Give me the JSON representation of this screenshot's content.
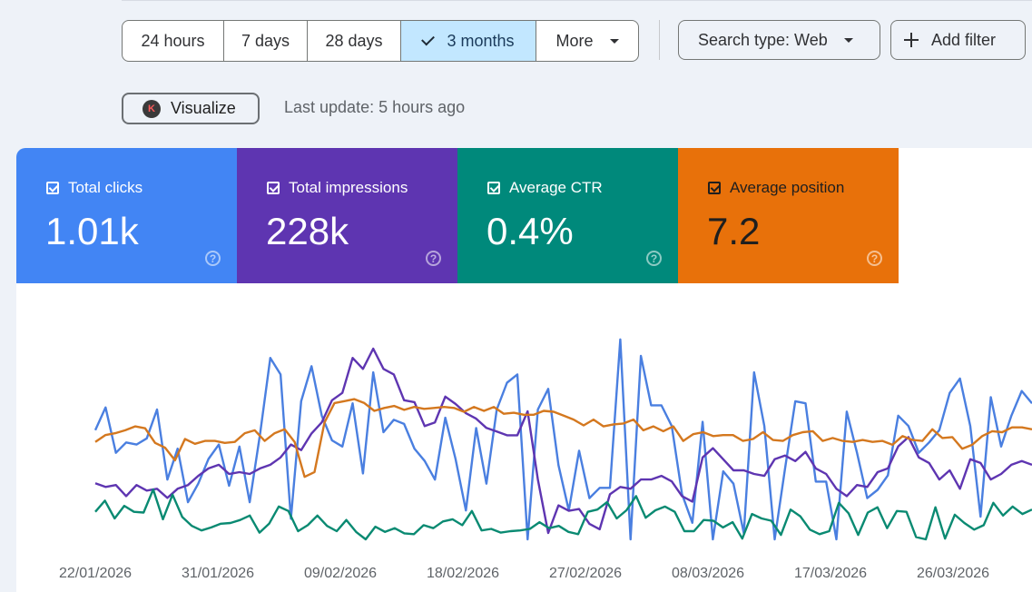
{
  "range_buttons": [
    {
      "label": "24 hours",
      "active": false
    },
    {
      "label": "7 days",
      "active": false
    },
    {
      "label": "28 days",
      "active": false
    },
    {
      "label": "3 months",
      "active": true
    },
    {
      "label": "More",
      "active": false
    }
  ],
  "search_type": {
    "label": "Search type: Web"
  },
  "add_filter": {
    "label": "Add filter"
  },
  "visualize": {
    "label": "Visualize",
    "logo_letter": "K"
  },
  "last_update": "Last update: 5 hours ago",
  "metrics": [
    {
      "label": "Total clicks",
      "value": "1.01k",
      "color": "#4285f4",
      "text_color": "#ffffff"
    },
    {
      "label": "Total impressions",
      "value": "228k",
      "color": "#5e35b1",
      "text_color": "#ffffff"
    },
    {
      "label": "Average CTR",
      "value": "0.4%",
      "color": "#00897b",
      "text_color": "#ffffff"
    },
    {
      "label": "Average position",
      "value": "7.2",
      "color": "#e8710a",
      "text_color": "#1f1f1f"
    }
  ],
  "chart_data": {
    "type": "line",
    "x_tick_labels": [
      "22/01/2026",
      "31/01/2026",
      "09/02/2026",
      "18/02/2026",
      "27/02/2026",
      "08/03/2026",
      "17/03/2026",
      "26/03/2026"
    ],
    "series_colors": {
      "clicks": "#4a7fe0",
      "impressions": "#5e35b1",
      "ctr": "#0a8a72",
      "position": "#d4781f"
    },
    "series": [
      {
        "key": "clicks",
        "values": [
          53,
          64,
          42,
          47,
          46,
          49,
          63,
          29,
          44,
          18,
          27,
          39,
          46,
          26,
          45,
          18,
          51,
          88,
          80,
          10,
          67,
          84,
          60,
          48,
          45,
          66,
          32,
          81,
          52,
          58,
          56,
          44,
          38,
          29,
          59,
          39,
          14,
          54,
          27,
          63,
          76,
          80,
          0,
          63,
          73,
          36,
          14,
          43,
          20,
          25,
          25,
          97,
          0,
          89,
          65,
          65,
          55,
          22,
          8,
          57,
          0,
          33,
          27,
          3,
          81,
          55,
          0,
          34,
          67,
          66,
          28,
          28,
          0,
          62,
          42,
          20,
          24,
          31,
          60,
          55,
          42,
          47,
          53,
          71,
          78,
          55,
          11,
          69,
          45,
          60,
          72,
          66
        ]
      },
      {
        "key": "impressions",
        "values": [
          27,
          25,
          26,
          20,
          26,
          23,
          24,
          19,
          24,
          26,
          31,
          35,
          37,
          32,
          33,
          32,
          35,
          37,
          41,
          48,
          45,
          54,
          60,
          72,
          76,
          95,
          89,
          100,
          89,
          86,
          72,
          71,
          58,
          60,
          74,
          70,
          65,
          62,
          57,
          55,
          53,
          53,
          66,
          29,
          0,
          15,
          12,
          13,
          5,
          2,
          21,
          25,
          24,
          29,
          29,
          31,
          28,
          20,
          17,
          41,
          46,
          40,
          34,
          34,
          32,
          31,
          40,
          42,
          39,
          44,
          35,
          32,
          24,
          20,
          26,
          25,
          33,
          35,
          47,
          52,
          41,
          38,
          29,
          34,
          24,
          40,
          38,
          29,
          32,
          37,
          39,
          37
        ]
      },
      {
        "key": "ctr",
        "values": [
          37,
          52,
          28,
          45,
          37,
          36,
          67,
          27,
          60,
          30,
          18,
          12,
          16,
          21,
          22,
          26,
          32,
          9,
          21,
          44,
          38,
          11,
          19,
          32,
          18,
          11,
          26,
          10,
          0,
          17,
          10,
          15,
          8,
          7,
          19,
          15,
          24,
          27,
          19,
          38,
          12,
          14,
          9,
          11,
          12,
          14,
          23,
          15,
          18,
          10,
          7,
          37,
          40,
          50,
          28,
          39,
          58,
          29,
          39,
          44,
          37,
          11,
          11,
          26,
          25,
          16,
          23,
          1,
          34,
          28,
          25,
          6,
          40,
          31,
          13,
          7,
          11,
          49,
          35,
          6,
          36,
          43,
          15,
          38,
          37,
          3,
          0,
          43,
          1,
          33,
          22,
          13,
          19,
          49,
          32,
          44,
          34,
          40
        ]
      },
      {
        "key": "position",
        "values": [
          47,
          54,
          56,
          59,
          63,
          61,
          46,
          41,
          28,
          50,
          45,
          48,
          48,
          46,
          47,
          56,
          59,
          48,
          56,
          60,
          47,
          11,
          16,
          67,
          87,
          89,
          91,
          87,
          79,
          82,
          84,
          80,
          83,
          81,
          82,
          83,
          82,
          78,
          83,
          79,
          83,
          76,
          77,
          75,
          75,
          79,
          78,
          74,
          70,
          64,
          70,
          63,
          65,
          66,
          70,
          59,
          63,
          58,
          63,
          48,
          55,
          57,
          53,
          54,
          54,
          48,
          50,
          57,
          49,
          48,
          54,
          57,
          58,
          48,
          51,
          48,
          47,
          49,
          47,
          48,
          44,
          53,
          49,
          48,
          60,
          51,
          52,
          40,
          44,
          53,
          58,
          57,
          62,
          62,
          60
        ]
      }
    ]
  }
}
